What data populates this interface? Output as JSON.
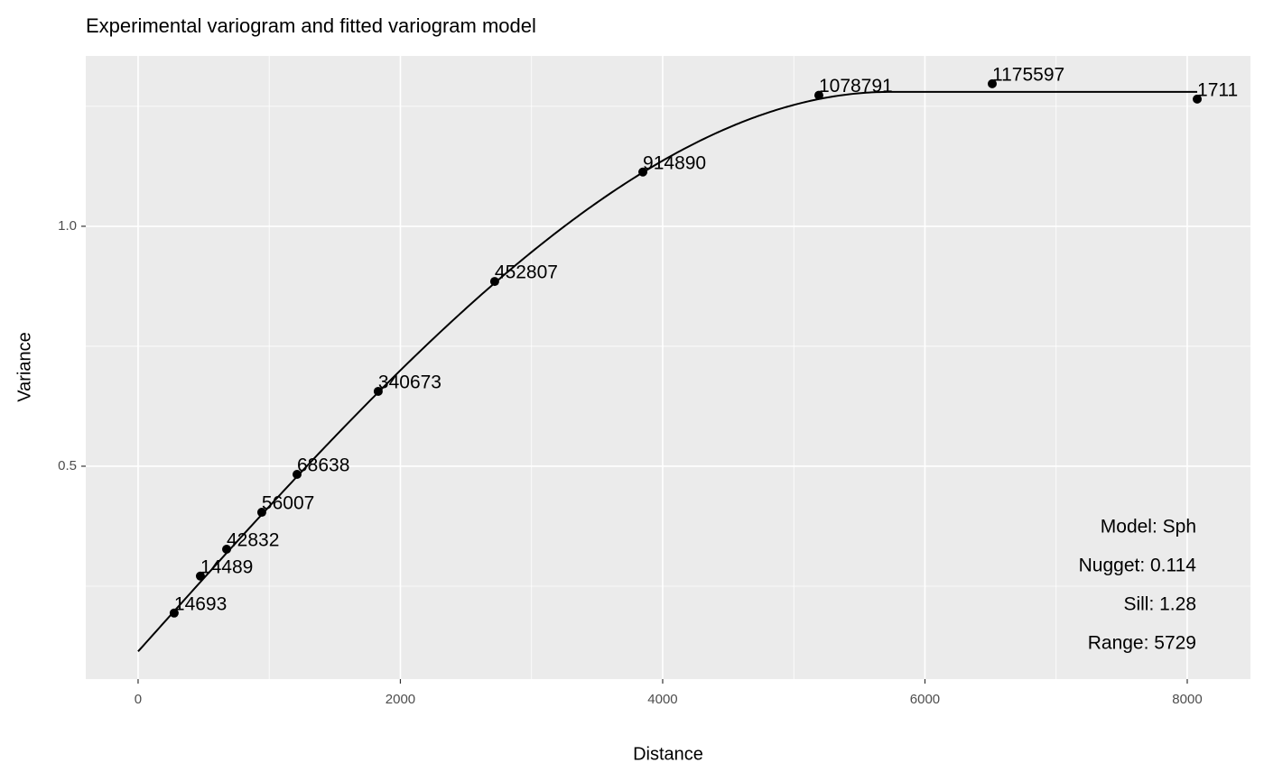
{
  "chart_data": {
    "type": "scatter",
    "title": "Experimental variogram and fitted variogram model",
    "x_label": "Distance",
    "y_label": "Variance",
    "x": [
      275,
      475,
      675,
      943,
      1212,
      1831,
      2719,
      3849,
      5191,
      6513,
      8076
    ],
    "values": [
      0.194,
      0.271,
      0.327,
      0.404,
      0.483,
      0.656,
      0.885,
      1.113,
      1.273,
      1.297,
      1.265
    ],
    "point_labels": [
      "14693",
      "14489",
      "42832",
      "56007",
      "68638",
      "340673",
      "452807",
      "914890",
      "1078791",
      "1175597",
      "1711"
    ],
    "color": "#000000",
    "xlim": [
      -399,
      8482
    ],
    "ylim": [
      0.0564,
      1.355
    ],
    "xticks": [
      0,
      2000,
      4000,
      6000,
      8000
    ],
    "yticks": [
      {
        "value": 0.5,
        "label": "0.5"
      },
      {
        "value": 1,
        "label": "1.0"
      }
    ],
    "x_minor_ticks": [
      1000,
      3000,
      5000,
      7000
    ],
    "y_minor_ticks": [
      0.25,
      0.75,
      1.25
    ],
    "grid": true,
    "model": {
      "name": "Model: Sph",
      "nugget": {
        "value": 0.114,
        "label": "Nugget: 0.114"
      },
      "sill": {
        "value": 1.28,
        "label": "Sill: 1.28"
      },
      "range": {
        "value": 5729,
        "label": "Range: 5729"
      }
    }
  }
}
